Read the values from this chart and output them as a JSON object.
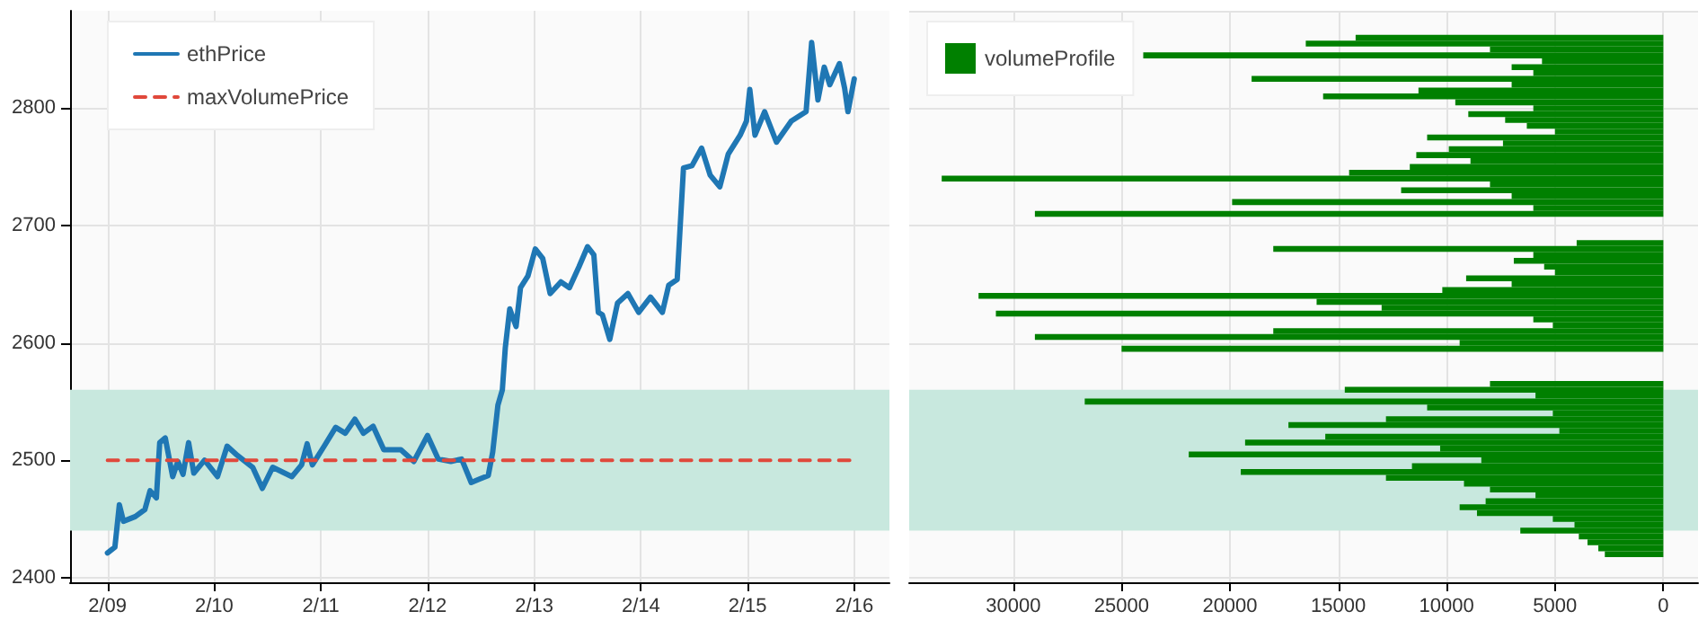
{
  "chart_data": [
    {
      "type": "line",
      "xlim": [
        "--02-08T15:35",
        "--02-16T07:55"
      ],
      "ylim": [
        2396,
        2883
      ],
      "xticks": [
        {
          "value": "--02-09",
          "label": "2/09"
        },
        {
          "value": "--02-10",
          "label": "2/10"
        },
        {
          "value": "--02-11",
          "label": "2/11"
        },
        {
          "value": "--02-12",
          "label": "2/12"
        },
        {
          "value": "--02-13",
          "label": "2/13"
        },
        {
          "value": "--02-14",
          "label": "2/14"
        },
        {
          "value": "--02-15",
          "label": "2/15"
        },
        {
          "value": "--02-16",
          "label": "2/16"
        }
      ],
      "yticks": [
        2400,
        2500,
        2600,
        2700,
        2800
      ],
      "grid": true,
      "legend": "top left",
      "marker": "none",
      "bands": [
        {
          "axis": "y",
          "from": 2440,
          "to": 2560,
          "color": "#c8e8de"
        }
      ],
      "series": [
        {
          "name": "ethPrice",
          "color": "#1f77b4",
          "line_style": "solid",
          "x": [
            "--02-09T00:00",
            "--02-09T01:40",
            "--02-09T02:40",
            "--02-09T03:35",
            "--02-09T06:15",
            "--02-09T08:25",
            "--02-09T09:35",
            "--02-09T11:00",
            "--02-09T11:45",
            "--02-09T13:00",
            "--02-09T14:40",
            "--02-09T15:50",
            "--02-09T17:00",
            "--02-09T18:15",
            "--02-09T19:25",
            "--02-09T21:50",
            "--02-10T00:45",
            "--02-10T02:55",
            "--02-10T05:15",
            "--02-10T08:40",
            "--02-10T10:50",
            "--02-10T13:10",
            "--02-10T17:30",
            "--02-10T19:40",
            "--02-10T20:55",
            "--02-10T22:05",
            "--02-11T00:45",
            "--02-11T03:20",
            "--02-11T05:30",
            "--02-11T07:40",
            "--02-11T09:35",
            "--02-11T11:45",
            "--02-11T14:10",
            "--02-11T18:00",
            "--02-11T20:55",
            "--02-12T00:00",
            "--02-12T02:25",
            "--02-12T05:15",
            "--02-12T07:40",
            "--02-12T09:50",
            "--02-12T11:45",
            "--02-12T13:40",
            "--02-12T14:40",
            "--02-12T15:50",
            "--02-12T16:50",
            "--02-12T17:30",
            "--02-12T18:30",
            "--02-12T19:55",
            "--02-12T20:55",
            "--02-12T22:35",
            "--02-13T00:15",
            "--02-13T01:55",
            "--02-13T03:35",
            "--02-13T06:00",
            "--02-13T07:55",
            "--02-13T10:05",
            "--02-13T12:00",
            "--02-13T13:25",
            "--02-13T14:25",
            "--02-13T15:20",
            "--02-13T17:00",
            "--02-13T18:45",
            "--02-13T21:05",
            "--02-13T23:30",
            "--02-14T02:10",
            "--02-14T04:50",
            "--02-14T06:15",
            "--02-14T08:10",
            "--02-14T09:35",
            "--02-14T11:30",
            "--02-14T13:40",
            "--02-14T15:35",
            "--02-14T17:45",
            "--02-14T19:40",
            "--02-14T22:20",
            "--02-14T23:45",
            "--02-15T00:30",
            "--02-15T01:40",
            "--02-15T03:50",
            "--02-15T06:30",
            "--02-15T09:50",
            "--02-15T13:10",
            "--02-15T14:25",
            "--02-15T15:50",
            "--02-15T17:15",
            "--02-15T18:30",
            "--02-15T20:40",
            "--02-15T21:50",
            "--02-15T22:35",
            "--02-16T00:00"
          ],
          "values": [
            2421,
            2426,
            2462,
            2448,
            2452,
            2458,
            2474,
            2468,
            2515,
            2519,
            2486,
            2499,
            2488,
            2515,
            2489,
            2500,
            2486,
            2512,
            2504,
            2494,
            2476,
            2494,
            2486,
            2496,
            2514,
            2496,
            2512,
            2528,
            2523,
            2535,
            2523,
            2529,
            2509,
            2509,
            2499,
            2521,
            2501,
            2499,
            2501,
            2481,
            2484,
            2487,
            2507,
            2547,
            2560,
            2596,
            2629,
            2614,
            2647,
            2657,
            2680,
            2672,
            2642,
            2652,
            2647,
            2665,
            2682,
            2675,
            2626,
            2624,
            2603,
            2634,
            2642,
            2626,
            2639,
            2626,
            2649,
            2654,
            2749,
            2751,
            2766,
            2743,
            2733,
            2761,
            2777,
            2789,
            2816,
            2777,
            2797,
            2771,
            2789,
            2797,
            2856,
            2807,
            2835,
            2820,
            2838,
            2817,
            2797,
            2825
          ]
        },
        {
          "name": "maxVolumePrice",
          "color": "#e0483b",
          "line_style": "dashed",
          "x": [
            "--02-09",
            "--02-16"
          ],
          "values": [
            2500,
            2500
          ]
        }
      ]
    },
    {
      "type": "bar",
      "orientation": "horizontal",
      "xlim": [
        34800,
        -1600
      ],
      "ylim": [
        2396,
        2883
      ],
      "xticks": [
        30000,
        25000,
        20000,
        15000,
        10000,
        5000,
        0
      ],
      "yticks": [
        2400,
        2500,
        2600,
        2700,
        2800
      ],
      "tick_labels": "x",
      "grid": true,
      "legend": "top left",
      "bands": [
        {
          "axis": "y",
          "from": 2440,
          "to": 2560,
          "color": "#c8e8de"
        }
      ],
      "x": [
        2860,
        2855,
        2850,
        2845,
        2840,
        2835,
        2830,
        2825,
        2820,
        2815,
        2810,
        2805,
        2800,
        2795,
        2790,
        2785,
        2780,
        2775,
        2770,
        2765,
        2760,
        2755,
        2750,
        2745,
        2740,
        2735,
        2730,
        2725,
        2720,
        2715,
        2710,
        2705,
        2700,
        2695,
        2690,
        2685,
        2680,
        2675,
        2670,
        2665,
        2660,
        2655,
        2650,
        2645,
        2640,
        2635,
        2630,
        2625,
        2620,
        2615,
        2610,
        2605,
        2600,
        2595,
        2590,
        2585,
        2580,
        2575,
        2570,
        2565,
        2560,
        2555,
        2550,
        2545,
        2540,
        2535,
        2530,
        2525,
        2520,
        2515,
        2510,
        2505,
        2500,
        2495,
        2490,
        2485,
        2480,
        2475,
        2470,
        2465,
        2460,
        2455,
        2450,
        2445,
        2440,
        2435,
        2430,
        2425,
        2420
      ],
      "series": [
        {
          "name": "volumeProfile",
          "color": "#008000",
          "values": [
            14200,
            16500,
            8000,
            24000,
            5600,
            7000,
            6000,
            19000,
            7000,
            11300,
            15700,
            9600,
            6000,
            9000,
            7300,
            6300,
            5000,
            10900,
            7400,
            9900,
            11400,
            8900,
            11700,
            14500,
            33300,
            8000,
            12100,
            7000,
            19900,
            6000,
            29000,
            0,
            0,
            0,
            0,
            4000,
            18000,
            6000,
            6900,
            5500,
            5000,
            9100,
            7000,
            10200,
            31600,
            16000,
            13000,
            30800,
            6000,
            5100,
            18000,
            29000,
            9400,
            25000,
            0,
            0,
            0,
            0,
            0,
            8000,
            14700,
            5900,
            26700,
            10900,
            5100,
            12800,
            17300,
            4800,
            15600,
            19300,
            10300,
            21900,
            8400,
            11600,
            19500,
            12800,
            9200,
            8000,
            5900,
            8200,
            9400,
            8600,
            5100,
            4100,
            6600,
            3900,
            3500,
            3000,
            2700
          ]
        }
      ]
    }
  ]
}
